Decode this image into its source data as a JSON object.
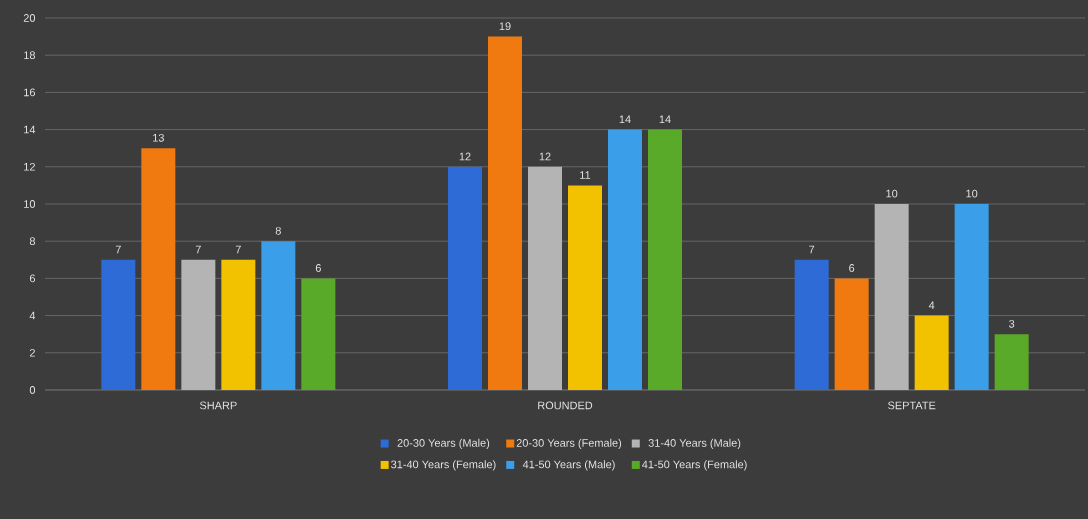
{
  "chart_data": {
    "type": "bar",
    "categories": [
      "SHARP",
      "ROUNDED",
      "SEPTATE"
    ],
    "series": [
      {
        "name": "20-30 Years (Male)",
        "color": "#2e6bd6",
        "values": [
          7,
          12,
          7
        ]
      },
      {
        "name": "20-30 Years (Female)",
        "color": "#f07a10",
        "values": [
          13,
          19,
          6
        ]
      },
      {
        "name": "31-40 Years (Male)",
        "color": "#b4b4b4",
        "values": [
          7,
          12,
          10
        ]
      },
      {
        "name": "31-40 Years (Female)",
        "color": "#f2c200",
        "values": [
          7,
          11,
          4
        ]
      },
      {
        "name": "41-50 Years (Male)",
        "color": "#3a9ee8",
        "values": [
          8,
          14,
          10
        ]
      },
      {
        "name": "41-50 Years (Female)",
        "color": "#5aaa2a",
        "values": [
          6,
          14,
          3
        ]
      }
    ],
    "ylim": [
      0,
      20
    ],
    "yticks": [
      0,
      2,
      4,
      6,
      8,
      10,
      12,
      14,
      16,
      18,
      20
    ],
    "grid": "y",
    "legend": "bottom",
    "data_labels": true
  }
}
